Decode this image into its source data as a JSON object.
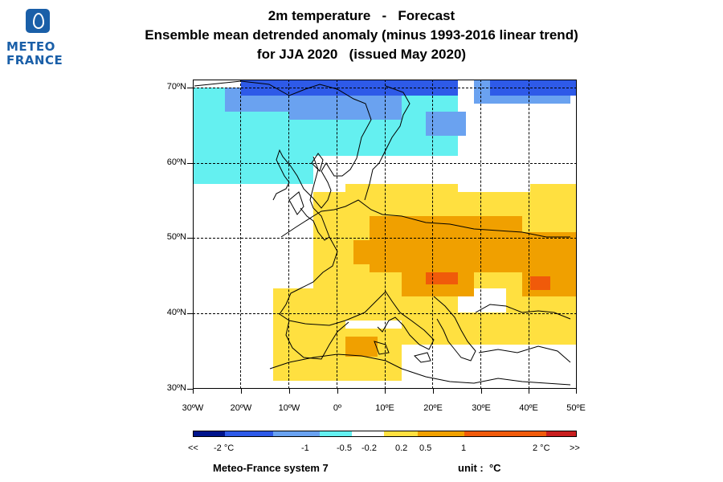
{
  "logo": {
    "line1": "METEO",
    "line2": "FRANCE"
  },
  "title": {
    "line1": "2m temperature   -   Forecast",
    "line2": "Ensemble mean detrended anomaly (minus 1993-2016 linear trend)",
    "line3": "for JJA 2020   (issued May 2020)"
  },
  "map": {
    "lon_range": [
      -30,
      50
    ],
    "lat_range": [
      30,
      70
    ],
    "lat_labels": [
      "70ºN",
      "60ºN",
      "50ºN",
      "40ºN",
      "30ºN"
    ],
    "lon_labels": [
      "30ºW",
      "20ºW",
      "10ºW",
      "0º",
      "10ºE",
      "20ºE",
      "30ºE",
      "40ºE",
      "50ºE"
    ],
    "grid": "dashed",
    "anomaly_regions": [
      {
        "bin": "0.5 to 1",
        "color": "#f0a000",
        "region": "Central & Eastern Europe, Balkans, Eastern Europe (approx.)"
      },
      {
        "bin": "1 to 2",
        "color": "#f05a0a",
        "region": "Pannonian basin / Hungary-Serbia (approx.)"
      },
      {
        "bin": "0.2 to 0.5",
        "color": "#ffe040",
        "region": "Southern & Central Europe, N Africa, Iberia (approx.)"
      },
      {
        "bin": "-0.5 to -0.2",
        "color": "#64f0f0",
        "region": "North Atlantic, Scandinavia (approx.)"
      },
      {
        "bin": "-1 to -0.5",
        "color": "#6aa2f0",
        "region": "Norwegian Sea, Scandinavia north (approx.)"
      },
      {
        "bin": "-2 to -1",
        "color": "#2e5ae8",
        "region": "Far north near 70ºN (approx.)"
      }
    ]
  },
  "colorbar": {
    "colors": [
      "#00148c",
      "#2e5ae8",
      "#6aa2f0",
      "#64f0f0",
      "#ffffff",
      "#ffe040",
      "#f0a000",
      "#f05a0a",
      "#c81e1e"
    ],
    "labels": [
      "<<",
      "-2 °C",
      "-1",
      "-0.5",
      "-0.2",
      "0.2",
      "0.5",
      "1",
      "2 °C",
      ">>"
    ]
  },
  "footer": {
    "system": "Meteo-France system 7",
    "unit": "unit :  °C"
  }
}
